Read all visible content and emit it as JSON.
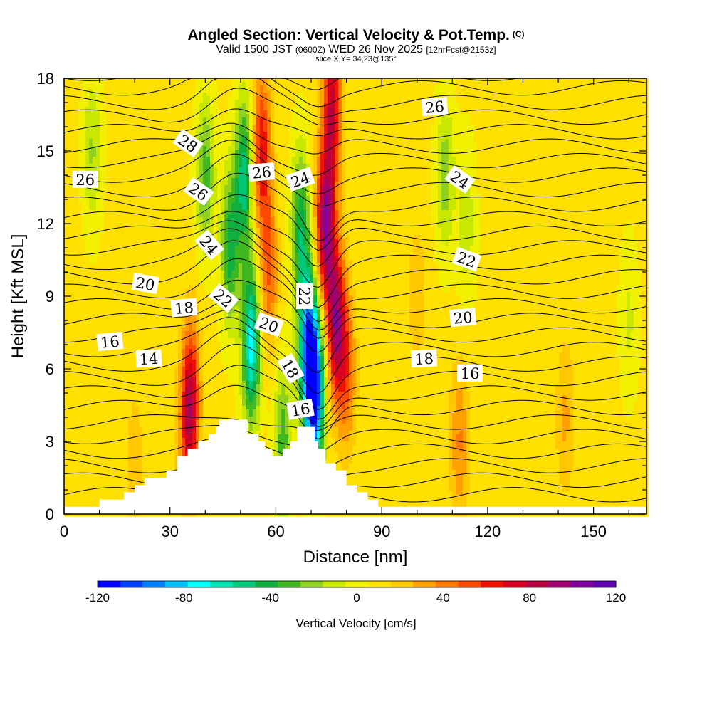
{
  "header": {
    "title": "Angled Section: Vertical Velocity & Pot.Temp.",
    "title_unit": "(C)",
    "valid_prefix": "Valid 1500 JST",
    "valid_utc": "(0600Z)",
    "valid_date": "WED 26 Nov 2025",
    "fcst_info": "[12hrFcst@2153z]",
    "slice": "slice X,Y= 34,23@135°"
  },
  "chart_data": {
    "type": "heatmap",
    "title": "Angled Section: Vertical Velocity & Pot.Temp. (C)",
    "xlabel": "Distance [nm]",
    "ylabel": "Height [Kft MSL]",
    "xlim": [
      0,
      165
    ],
    "ylim": [
      0,
      18
    ],
    "x_ticks": [
      0,
      30,
      60,
      90,
      120,
      150
    ],
    "y_ticks": [
      0,
      3,
      6,
      9,
      12,
      15,
      18
    ],
    "colorbar": {
      "label": "Vertical Velocity [cm/s]",
      "range": [
        -120,
        120
      ],
      "ticks": [
        -120,
        -80,
        -40,
        0,
        40,
        80,
        120
      ],
      "colors": [
        "#0000ff",
        "#0040ff",
        "#0080ff",
        "#00c0ff",
        "#00ffff",
        "#00e0b0",
        "#00c878",
        "#10b040",
        "#40b820",
        "#90d020",
        "#c8e800",
        "#f0f000",
        "#ffe000",
        "#ffc800",
        "#ffa000",
        "#ff7800",
        "#ff4800",
        "#f01000",
        "#d80020",
        "#b80040",
        "#a00070",
        "#8000a0",
        "#6000b0"
      ]
    },
    "terrain": [
      [
        0,
        0.3
      ],
      [
        10,
        0.3
      ],
      [
        10,
        0.6
      ],
      [
        17,
        0.6
      ],
      [
        17,
        0.9
      ],
      [
        20,
        0.9
      ],
      [
        20,
        1.2
      ],
      [
        23,
        1.2
      ],
      [
        23,
        1.5
      ],
      [
        29,
        1.5
      ],
      [
        29,
        1.8
      ],
      [
        32,
        1.8
      ],
      [
        32,
        2.4
      ],
      [
        35,
        2.4
      ],
      [
        35,
        2.7
      ],
      [
        38,
        2.7
      ],
      [
        38,
        3.0
      ],
      [
        41,
        3.0
      ],
      [
        41,
        3.3
      ],
      [
        43,
        3.3
      ],
      [
        43,
        3.6
      ],
      [
        44,
        3.6
      ],
      [
        44,
        3.9
      ],
      [
        52,
        3.9
      ],
      [
        52,
        3.3
      ],
      [
        55,
        3.3
      ],
      [
        55,
        3.0
      ],
      [
        57,
        3.0
      ],
      [
        57,
        2.7
      ],
      [
        59,
        2.7
      ],
      [
        59,
        2.4
      ],
      [
        62,
        2.4
      ],
      [
        62,
        2.7
      ],
      [
        64,
        2.7
      ],
      [
        64,
        3.0
      ],
      [
        66,
        3.0
      ],
      [
        66,
        3.6
      ],
      [
        71,
        3.6
      ],
      [
        71,
        3.0
      ],
      [
        72,
        3.0
      ],
      [
        72,
        2.7
      ],
      [
        74,
        2.7
      ],
      [
        74,
        2.1
      ],
      [
        77,
        2.1
      ],
      [
        77,
        1.8
      ],
      [
        80,
        1.8
      ],
      [
        80,
        1.2
      ],
      [
        83,
        1.2
      ],
      [
        83,
        0.9
      ],
      [
        86,
        0.9
      ],
      [
        86,
        0.6
      ],
      [
        89,
        0.6
      ],
      [
        89,
        0.3
      ],
      [
        165,
        0.3
      ]
    ],
    "vv_features": [
      {
        "x": 47,
        "y": 11,
        "v": -50
      },
      {
        "x": 51,
        "y": 14,
        "v": -60
      },
      {
        "x": 53,
        "y": 7,
        "v": -80
      },
      {
        "x": 56,
        "y": 15,
        "v": 60
      },
      {
        "x": 58,
        "y": 10,
        "v": 40
      },
      {
        "x": 67,
        "y": 12,
        "v": -50
      },
      {
        "x": 69,
        "y": 7,
        "v": -90
      },
      {
        "x": 71,
        "y": 5,
        "v": -120
      },
      {
        "x": 74,
        "y": 12,
        "v": 90
      },
      {
        "x": 77,
        "y": 8,
        "v": 80
      },
      {
        "x": 80,
        "y": 6,
        "v": 40
      },
      {
        "x": 76,
        "y": 17,
        "v": 70
      },
      {
        "x": 36,
        "y": 5,
        "v": 50
      },
      {
        "x": 35,
        "y": 3.5,
        "v": 40
      },
      {
        "x": 40,
        "y": 14,
        "v": -40
      },
      {
        "x": 8,
        "y": 15,
        "v": -25
      },
      {
        "x": 108,
        "y": 14,
        "v": -30
      },
      {
        "x": 114,
        "y": 12,
        "v": -20
      },
      {
        "x": 100,
        "y": 9,
        "v": 15
      },
      {
        "x": 112,
        "y": 3,
        "v": 30
      },
      {
        "x": 142,
        "y": 4,
        "v": 20
      },
      {
        "x": 62,
        "y": 3,
        "v": -40
      },
      {
        "x": 20,
        "y": 2,
        "v": 15
      },
      {
        "x": 160,
        "y": 8,
        "v": -15
      }
    ],
    "contour_labels": [
      {
        "text": "28",
        "x": 35,
        "y": 15.3,
        "angle": 35
      },
      {
        "text": "26",
        "x": 6,
        "y": 13.8,
        "angle": 0
      },
      {
        "text": "26",
        "x": 38,
        "y": 13.3,
        "angle": 35
      },
      {
        "text": "26",
        "x": 56,
        "y": 14.1,
        "angle": -5
      },
      {
        "text": "26",
        "x": 105,
        "y": 16.8,
        "angle": -5
      },
      {
        "text": "24",
        "x": 41,
        "y": 11.1,
        "angle": 50
      },
      {
        "text": "24",
        "x": 67,
        "y": 13.8,
        "angle": -20
      },
      {
        "text": "24",
        "x": 112,
        "y": 13.8,
        "angle": 35
      },
      {
        "text": "22",
        "x": 45,
        "y": 8.9,
        "angle": 40
      },
      {
        "text": "22",
        "x": 68,
        "y": 9.0,
        "angle": 90
      },
      {
        "text": "22",
        "x": 114,
        "y": 10.5,
        "angle": 20
      },
      {
        "text": "20",
        "x": 23,
        "y": 9.5,
        "angle": 10
      },
      {
        "text": "20",
        "x": 58,
        "y": 7.8,
        "angle": 20
      },
      {
        "text": "20",
        "x": 113,
        "y": 8.1,
        "angle": -5
      },
      {
        "text": "18",
        "x": 34,
        "y": 8.5,
        "angle": -5
      },
      {
        "text": "18",
        "x": 64,
        "y": 6.0,
        "angle": 60
      },
      {
        "text": "18",
        "x": 102,
        "y": 6.4,
        "angle": -3
      },
      {
        "text": "16",
        "x": 13,
        "y": 7.1,
        "angle": -5
      },
      {
        "text": "16",
        "x": 67,
        "y": 4.3,
        "angle": -10
      },
      {
        "text": "16",
        "x": 115,
        "y": 5.8,
        "angle": 0
      },
      {
        "text": "14",
        "x": 24,
        "y": 6.4,
        "angle": -3
      }
    ]
  }
}
